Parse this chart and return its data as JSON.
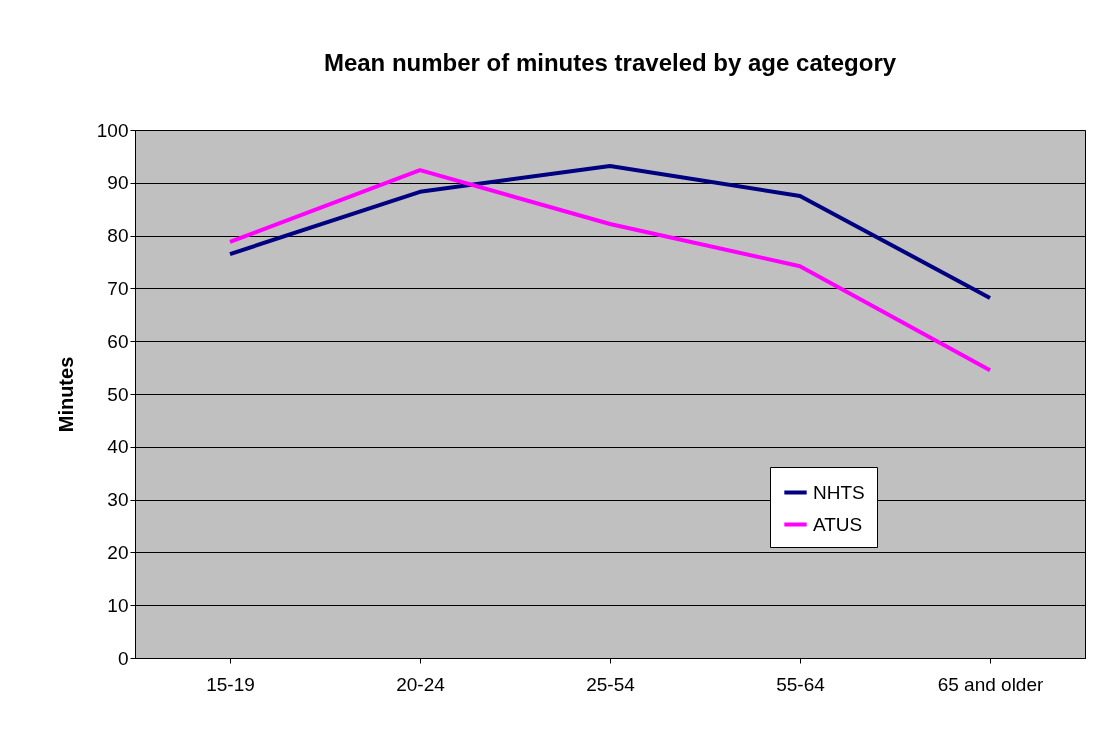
{
  "chart_data": {
    "type": "line",
    "title": "Mean number of minutes traveled by age category",
    "ylabel": "Minutes",
    "categories": [
      "15-19",
      "20-24",
      "25-54",
      "55-64",
      "65 and older"
    ],
    "series": [
      {
        "name": "NHTS",
        "color": "#000080",
        "values": [
          76.5,
          88.3,
          93.2,
          87.5,
          68.2
        ]
      },
      {
        "name": "ATUS",
        "color": "#ff00ff",
        "values": [
          78.8,
          92.4,
          82.2,
          74.2,
          54.5
        ]
      }
    ],
    "ylim": [
      0,
      100
    ],
    "yticks": [
      0,
      10,
      20,
      30,
      40,
      50,
      60,
      70,
      80,
      90,
      100
    ],
    "grid": "y",
    "legend": "bottom right",
    "marker": "none",
    "line_style": "solid"
  }
}
